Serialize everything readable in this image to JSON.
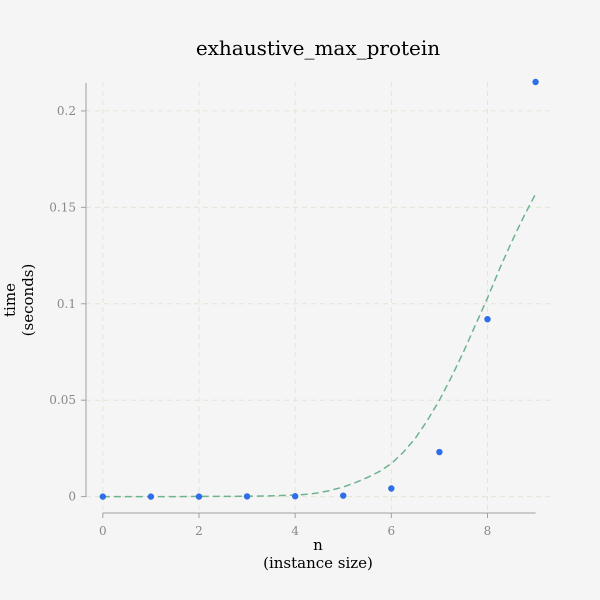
{
  "chart_data": {
    "type": "scatter",
    "title": "exhaustive_max_protein",
    "xlabel_line1": "n",
    "xlabel_line2": "(instance size)",
    "ylabel_line1": "time",
    "ylabel_line2": "(seconds)",
    "xlim": [
      -0.35,
      9.3
    ],
    "ylim": [
      -0.0085,
      0.215
    ],
    "x_ticks": [
      0,
      2,
      4,
      6,
      8
    ],
    "x_tick_labels": [
      "0",
      "2",
      "4",
      "6",
      "8"
    ],
    "y_ticks": [
      0,
      0.05,
      0.1,
      0.15,
      0.2
    ],
    "y_tick_labels": [
      "0",
      "0.05",
      "0.1",
      "0.15",
      "0.2"
    ],
    "grid": true,
    "series": [
      {
        "kind": "points",
        "color": "#2e6fe8",
        "x": [
          0,
          1,
          2,
          3,
          4,
          5,
          6,
          7,
          8,
          9
        ],
        "y": [
          0.0,
          0.0,
          0.0,
          0.0001,
          0.0002,
          0.0005,
          0.0042,
          0.0231,
          0.092,
          0.215
        ]
      },
      {
        "kind": "fit",
        "color": "#6db38f",
        "x": [
          0,
          0.5,
          1,
          1.5,
          2,
          2.5,
          3,
          3.5,
          4,
          4.25,
          4.5,
          4.75,
          5,
          5.25,
          5.5,
          5.75,
          6,
          6.25,
          6.5,
          6.75,
          7,
          7.25,
          7.5,
          7.75,
          8,
          8.25,
          8.5,
          8.75,
          9
        ],
        "y": [
          0.0,
          0.0,
          0.0,
          0.0,
          0.0001,
          0.0001,
          0.0002,
          0.0004,
          0.0008,
          0.0012,
          0.002,
          0.0033,
          0.005,
          0.0072,
          0.0099,
          0.013,
          0.0171,
          0.023,
          0.0303,
          0.0395,
          0.05,
          0.062,
          0.075,
          0.089,
          0.103,
          0.118,
          0.132,
          0.145,
          0.157
        ]
      }
    ]
  }
}
